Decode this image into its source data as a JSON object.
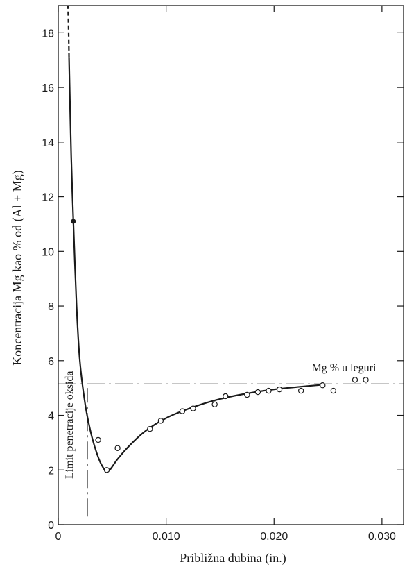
{
  "chart_data": {
    "type": "scatter",
    "xlabel": "Približna dubina (in.)",
    "ylabel": "Koncentracija Mg kao % od (Al + Mg)",
    "xlim": [
      0,
      0.032
    ],
    "ylim": [
      0,
      19
    ],
    "x_ticks": [
      0,
      0.01,
      0.02,
      0.03
    ],
    "x_tick_labels": [
      "0",
      "0.010",
      "0.020",
      "0.030"
    ],
    "y_ticks": [
      0,
      2,
      4,
      6,
      8,
      10,
      12,
      14,
      16,
      18
    ],
    "y_tick_labels": [
      "0",
      "2",
      "4",
      "6",
      "8",
      "10",
      "12",
      "14",
      "16",
      "18"
    ],
    "grid": false,
    "series": [
      {
        "values": [
          {
            "x": 0.0037,
            "y": 3.1
          },
          {
            "x": 0.0045,
            "y": 2.0
          },
          {
            "x": 0.0055,
            "y": 2.8
          },
          {
            "x": 0.0085,
            "y": 3.5
          },
          {
            "x": 0.0095,
            "y": 3.8
          },
          {
            "x": 0.0115,
            "y": 4.15
          },
          {
            "x": 0.0125,
            "y": 4.25
          },
          {
            "x": 0.0145,
            "y": 4.4
          },
          {
            "x": 0.0155,
            "y": 4.7
          },
          {
            "x": 0.0175,
            "y": 4.75
          },
          {
            "x": 0.0185,
            "y": 4.85
          },
          {
            "x": 0.0195,
            "y": 4.9
          },
          {
            "x": 0.0205,
            "y": 4.95
          },
          {
            "x": 0.0225,
            "y": 4.9
          },
          {
            "x": 0.0245,
            "y": 5.1
          },
          {
            "x": 0.0255,
            "y": 4.9
          },
          {
            "x": 0.0275,
            "y": 5.3
          },
          {
            "x": 0.0285,
            "y": 5.3
          }
        ]
      },
      {
        "values": [
          {
            "x": 0.0014,
            "y": 11.1
          }
        ]
      }
    ],
    "fit_curve": [
      {
        "x": 0.001,
        "y": 17.1
      },
      {
        "x": 0.0012,
        "y": 13.5
      },
      {
        "x": 0.0014,
        "y": 11.1
      },
      {
        "x": 0.0017,
        "y": 8.0
      },
      {
        "x": 0.002,
        "y": 6.0
      },
      {
        "x": 0.0025,
        "y": 4.4
      },
      {
        "x": 0.003,
        "y": 3.4
      },
      {
        "x": 0.0035,
        "y": 2.7
      },
      {
        "x": 0.004,
        "y": 2.2
      },
      {
        "x": 0.0046,
        "y": 1.95
      },
      {
        "x": 0.0055,
        "y": 2.4
      },
      {
        "x": 0.0065,
        "y": 2.85
      },
      {
        "x": 0.008,
        "y": 3.4
      },
      {
        "x": 0.01,
        "y": 3.9
      },
      {
        "x": 0.0125,
        "y": 4.3
      },
      {
        "x": 0.015,
        "y": 4.6
      },
      {
        "x": 0.0175,
        "y": 4.8
      },
      {
        "x": 0.02,
        "y": 4.95
      },
      {
        "x": 0.0225,
        "y": 5.05
      },
      {
        "x": 0.0245,
        "y": 5.12
      }
    ],
    "fit_curve_dashed": [
      {
        "x": 0.001,
        "y": 17.1
      },
      {
        "x": 0.00095,
        "y": 18.3
      },
      {
        "x": 0.0009,
        "y": 19.0
      }
    ],
    "reference_line": {
      "y": 5.15,
      "label": "Mg % u leguri"
    },
    "oxide_limit_line": {
      "x": 0.0027,
      "y_from": 0.3,
      "y_to": 5.0,
      "label": "Limit penetracije oksida"
    }
  }
}
